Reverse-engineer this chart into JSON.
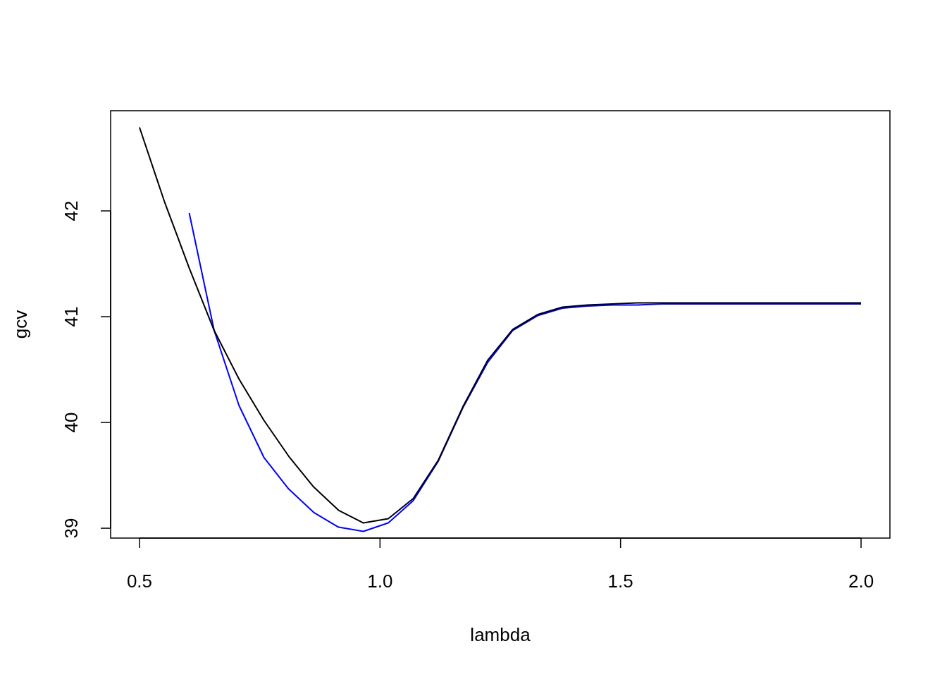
{
  "chart_data": {
    "type": "line",
    "xlabel": "lambda",
    "ylabel": "gcv",
    "x": [
      0.5,
      0.5517,
      0.6034,
      0.6552,
      0.7069,
      0.7586,
      0.8103,
      0.8621,
      0.9138,
      0.9655,
      1.0172,
      1.069,
      1.1207,
      1.1724,
      1.2241,
      1.2759,
      1.3276,
      1.3793,
      1.431,
      1.4828,
      1.5345,
      1.5862,
      1.6379,
      1.6897,
      1.7414,
      1.7931,
      1.8448,
      1.8966,
      1.9483,
      2.0
    ],
    "series": [
      {
        "color": "#0000ff",
        "values": [
          null,
          null,
          41.98,
          40.87,
          40.16,
          39.67,
          39.37,
          39.15,
          39.01,
          38.97,
          39.05,
          39.26,
          39.63,
          40.14,
          40.57,
          40.87,
          41.01,
          41.08,
          41.1,
          41.11,
          41.11,
          41.12,
          41.12,
          41.12,
          41.12,
          41.12,
          41.12,
          41.12,
          41.12,
          41.12
        ]
      },
      {
        "color": "#000000",
        "values": [
          42.79,
          42.09,
          41.46,
          40.87,
          40.41,
          40.02,
          39.68,
          39.39,
          39.17,
          39.05,
          39.09,
          39.28,
          39.64,
          40.15,
          40.59,
          40.88,
          41.02,
          41.09,
          41.11,
          41.12,
          41.13,
          41.13,
          41.13,
          41.13,
          41.13,
          41.13,
          41.13,
          41.13,
          41.13,
          41.13
        ]
      }
    ],
    "xlim": [
      0.44,
      2.06
    ],
    "ylim": [
      38.907,
      42.947
    ],
    "xticks": [
      0.5,
      {
        "value": 1,
        "label": "1.0"
      },
      1.5,
      {
        "value": 2,
        "label": "2.0"
      }
    ],
    "yticks": [
      39,
      40,
      41,
      42
    ],
    "grid": false,
    "marker": "none",
    "line_style": "solid"
  }
}
